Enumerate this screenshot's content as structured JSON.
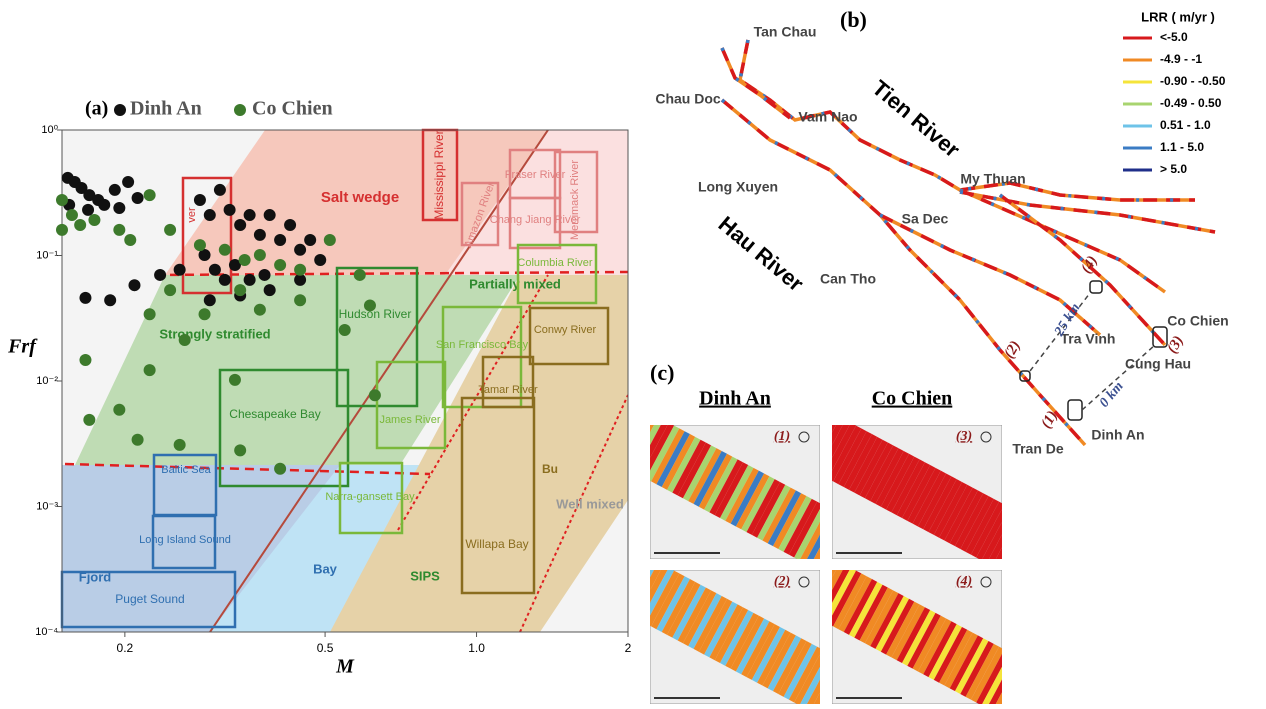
{
  "chart_data": {
    "type": "scatter",
    "title": "(a)",
    "x_label": "M",
    "y_label": "Frf",
    "log_x": true,
    "log_y": true,
    "xlim": [
      0.15,
      2
    ],
    "ylim": [
      0.0001,
      1
    ],
    "xticks": [
      0.2,
      0.5,
      {
        "value": 1,
        "label": "1.0"
      },
      2
    ],
    "yticks": [
      {
        "value": 0.0001,
        "label": "10⁻⁴"
      },
      {
        "value": 0.001,
        "label": "10⁻³"
      },
      {
        "value": 0.01,
        "label": "10⁻²"
      },
      {
        "value": 0.1,
        "label": "10⁻¹"
      },
      {
        "value": 1,
        "label": "10⁰"
      }
    ],
    "series": [
      {
        "name": "Dinh An",
        "color": "#111111",
        "x": [
          0.154,
          0.159,
          0.164,
          0.17,
          0.177,
          0.182,
          0.191,
          0.203,
          0.212,
          0.155,
          0.169,
          0.195,
          0.282,
          0.295,
          0.309,
          0.323,
          0.339,
          0.354,
          0.371,
          0.388,
          0.407,
          0.426,
          0.446,
          0.467,
          0.489,
          0.288,
          0.302,
          0.316,
          0.331,
          0.354,
          0.379,
          0.257,
          0.235,
          0.209,
          0.187,
          0.167,
          0.339,
          0.388,
          0.295,
          0.446
        ],
        "y": [
          0.415,
          0.385,
          0.345,
          0.303,
          0.277,
          0.253,
          0.333,
          0.385,
          0.287,
          0.253,
          0.231,
          0.239,
          0.277,
          0.21,
          0.333,
          0.231,
          0.175,
          0.21,
          0.146,
          0.21,
          0.133,
          0.175,
          0.111,
          0.133,
          0.092,
          0.101,
          0.077,
          0.064,
          0.084,
          0.064,
          0.07,
          0.077,
          0.07,
          0.058,
          0.044,
          0.046,
          0.048,
          0.053,
          0.044,
          0.064
        ]
      },
      {
        "name": "Co Chien",
        "color": "#3d7a2c",
        "x": [
          0.15,
          0.157,
          0.163,
          0.174,
          0.195,
          0.224,
          0.205,
          0.246,
          0.282,
          0.316,
          0.346,
          0.371,
          0.407,
          0.446,
          0.511,
          0.586,
          0.224,
          0.263,
          0.331,
          0.339,
          0.446,
          0.246,
          0.167,
          0.224,
          0.195,
          0.257,
          0.212,
          0.339,
          0.407,
          0.628,
          0.614,
          0.547,
          0.17,
          0.15,
          0.288,
          0.371
        ],
        "y": [
          0.277,
          0.21,
          0.175,
          0.192,
          0.16,
          0.303,
          0.133,
          0.16,
          0.121,
          0.111,
          0.092,
          0.101,
          0.084,
          0.077,
          0.133,
          0.07,
          0.034,
          0.0212,
          0.0102,
          0.053,
          0.044,
          0.053,
          0.0147,
          0.0122,
          0.0059,
          0.0031,
          0.0034,
          0.0028,
          0.002,
          0.0077,
          0.04,
          0.0255,
          0.0049,
          0.16,
          0.034,
          0.037
        ]
      }
    ],
    "annotations": [
      "Salt wedge",
      "Partially mixed",
      "Strongly stratified",
      "Fjord",
      "Bay",
      "SIPS",
      "Well mixed",
      "Bu",
      "Mississippi River",
      "Amazon River",
      "Fraser River",
      "Chang Jiang River",
      "Merrimack River",
      "Columbia River",
      "Hudson River",
      "San Francisco Bay",
      "Conwy River",
      "Tamar River",
      "Chesapeake Bay",
      "James River",
      "Narra-gansett Bay",
      "Willapa Bay",
      "Baltic Sea",
      "Long Island Sound",
      "Puget Sound",
      "ver"
    ]
  },
  "map_b": {
    "label": "(b)",
    "legend_title": "LRR ( m/yr )",
    "legend": [
      {
        "label": "<-5.0",
        "color": "#d7191c"
      },
      {
        "label": "-4.9 - -1",
        "color": "#f08a24"
      },
      {
        "label": "-0.90 - -0.50",
        "color": "#f5e43a"
      },
      {
        "label": "-0.49 - 0.50",
        "color": "#a8d46f"
      },
      {
        "label": "0.51 - 1.0",
        "color": "#6ec3e8"
      },
      {
        "label": "1.1 - 5.0",
        "color": "#3b7cc4"
      },
      {
        "label": "> 5.0",
        "color": "#1f2f8a"
      }
    ],
    "places": [
      "Tan Chau",
      "Chau Doc",
      "Vam Nao",
      "Long Xuyen",
      "My Thuan",
      "Sa Dec",
      "Can Tho",
      "Tra Vinh",
      "Co Chien",
      "Cung Hau",
      "Dinh An",
      "Tran De"
    ],
    "rivers": [
      "Tien River",
      "Hau River"
    ],
    "distances": [
      "25 km",
      "0 km"
    ],
    "sites": [
      "(1)",
      "(2)",
      "(3)",
      "(4)"
    ]
  },
  "panel_c": {
    "label": "(c)",
    "columns": [
      "Dinh An",
      "Co Chien"
    ],
    "insets": [
      "(1)",
      "(3)",
      "(2)",
      "(4)"
    ]
  }
}
